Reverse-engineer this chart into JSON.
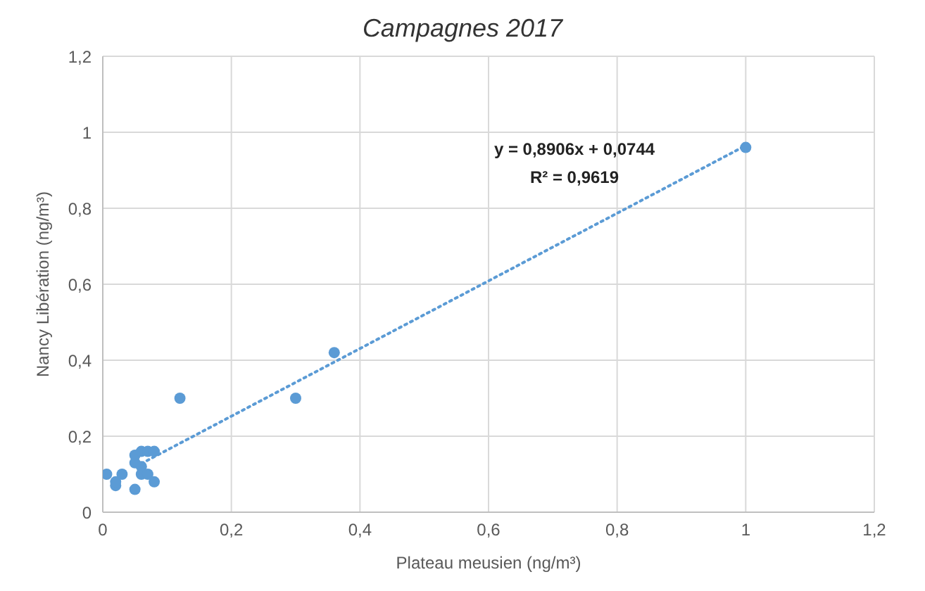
{
  "chart_data": {
    "type": "scatter",
    "title": "Campagnes 2017",
    "xlabel": "Plateau meusien (ng/m³)",
    "ylabel": "Nancy Libération (ng/m³)",
    "annotations": [
      "y = 0,8906x + 0,0744",
      "R² = 0,9619"
    ],
    "series": [
      {
        "color": "#5b9bd5",
        "marker": "circle",
        "x": [
          0.006,
          0.02,
          0.02,
          0.03,
          0.05,
          0.05,
          0.05,
          0.06,
          0.07,
          0.08,
          0.06,
          0.06,
          0.07,
          0.08,
          0.12,
          0.3,
          0.36,
          1.0
        ],
        "values": [
          0.1,
          0.07,
          0.08,
          0.1,
          0.06,
          0.13,
          0.15,
          0.16,
          0.16,
          0.16,
          0.12,
          0.1,
          0.1,
          0.08,
          0.3,
          0.3,
          0.42,
          0.96
        ]
      },
      {
        "type": "line",
        "color": "#5b9bd5",
        "line_style": "dotted",
        "marker": "none",
        "x": [
          0.06,
          1.0
        ],
        "values": [
          0.128,
          0.965
        ]
      }
    ],
    "xlim": [
      0,
      1.2
    ],
    "xticks": [
      0,
      {
        "value": 0.2,
        "label": "0,2"
      },
      {
        "value": 0.4,
        "label": "0,4"
      },
      {
        "value": 0.6,
        "label": "0,6"
      },
      {
        "value": 0.8,
        "label": "0,8"
      },
      1,
      {
        "value": 1.2,
        "label": "1,2"
      }
    ],
    "ylim": [
      0,
      1.2
    ],
    "yticks": [
      0,
      {
        "value": 0.2,
        "label": "0,2"
      },
      {
        "value": 0.4,
        "label": "0,4"
      },
      {
        "value": 0.6,
        "label": "0,6"
      },
      {
        "value": 0.8,
        "label": "0,8"
      },
      1,
      {
        "value": 1.2,
        "label": "1,2"
      }
    ],
    "grid": true,
    "legend": false
  }
}
